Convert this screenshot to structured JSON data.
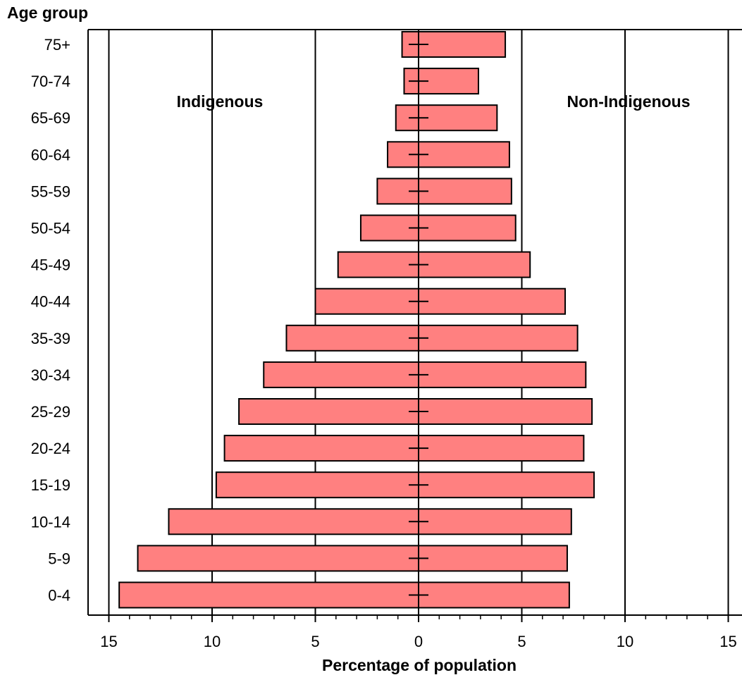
{
  "chart_data": {
    "type": "bar",
    "orientation": "horizontal",
    "ylabel": "Age group",
    "xlabel": "Percentage of population",
    "xlim": [
      -15,
      15
    ],
    "x_ticks": [
      -15,
      -10,
      -5,
      0,
      5,
      10,
      15
    ],
    "x_tick_labels": [
      "15",
      "10",
      "5",
      "0",
      "5",
      "10",
      "15"
    ],
    "grid": "vertical lines at 5, 10, 15",
    "categories": [
      "0-4",
      "5-9",
      "10-14",
      "15-19",
      "20-24",
      "25-29",
      "30-34",
      "35-39",
      "40-44",
      "45-49",
      "50-54",
      "55-59",
      "60-64",
      "65-69",
      "70-74",
      "75+"
    ],
    "series": [
      {
        "name": "Indigenous",
        "side": "left",
        "values": [
          14.5,
          13.6,
          12.1,
          9.8,
          9.4,
          8.7,
          7.5,
          6.4,
          5.0,
          3.9,
          2.8,
          2.0,
          1.5,
          1.1,
          0.7,
          0.8
        ]
      },
      {
        "name": "Non-Indigenous",
        "side": "right",
        "values": [
          7.3,
          7.2,
          7.4,
          8.5,
          8.0,
          8.4,
          8.1,
          7.7,
          7.1,
          5.4,
          4.7,
          4.5,
          4.4,
          3.8,
          2.9,
          4.2
        ]
      }
    ],
    "bar_color": "#ff8080",
    "bar_border_color": "#000000",
    "series_label_positions": [
      "top-left",
      "top-right"
    ]
  }
}
